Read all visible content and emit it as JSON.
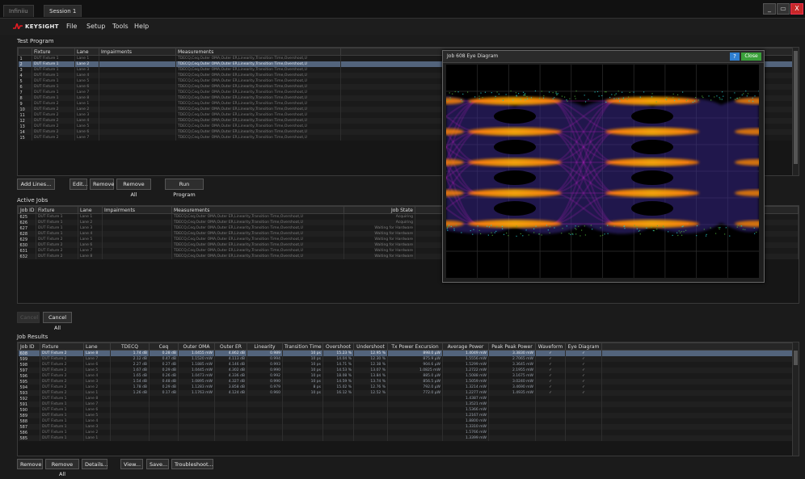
{
  "tabs": [
    {
      "label": "Infiniiu",
      "active": false
    },
    {
      "label": "Session 1",
      "active": true
    }
  ],
  "window_controls": {
    "minimize": "_",
    "restore": "▭",
    "close": "X"
  },
  "brand": {
    "name": "KEYSIGHT",
    "color": "#e31b23"
  },
  "menu": [
    "File",
    "Setup",
    "Tools",
    "Help"
  ],
  "test_program": {
    "label": "Test Program",
    "columns": [
      "",
      "Fixture",
      "Lane",
      "Impairments",
      "Measurements"
    ],
    "rows": [
      {
        "n": "1",
        "fixture": "DUT Fixture 1",
        "lane": "Lane 1",
        "imp": "",
        "meas": "TDECQ,Ceq,Outer OMA,Outer ER,Linearity,Transition Time,Overshoot,U"
      },
      {
        "n": "2",
        "fixture": "DUT Fixture 1",
        "lane": "Lane 2",
        "imp": "",
        "meas": "TDECQ,Ceq,Outer OMA,Outer ER,Linearity,Transition Time,Overshoot,U"
      },
      {
        "n": "3",
        "fixture": "DUT Fixture 1",
        "lane": "Lane 3",
        "imp": "",
        "meas": "TDECQ,Ceq,Outer OMA,Outer ER,Linearity,Transition Time,Overshoot,U"
      },
      {
        "n": "4",
        "fixture": "DUT Fixture 1",
        "lane": "Lane 4",
        "imp": "",
        "meas": "TDECQ,Ceq,Outer OMA,Outer ER,Linearity,Transition Time,Overshoot,U"
      },
      {
        "n": "5",
        "fixture": "DUT Fixture 1",
        "lane": "Lane 5",
        "imp": "",
        "meas": "TDECQ,Ceq,Outer OMA,Outer ER,Linearity,Transition Time,Overshoot,U"
      },
      {
        "n": "6",
        "fixture": "DUT Fixture 1",
        "lane": "Lane 6",
        "imp": "",
        "meas": "TDECQ,Ceq,Outer OMA,Outer ER,Linearity,Transition Time,Overshoot,U"
      },
      {
        "n": "7",
        "fixture": "DUT Fixture 1",
        "lane": "Lane 7",
        "imp": "",
        "meas": "TDECQ,Ceq,Outer OMA,Outer ER,Linearity,Transition Time,Overshoot,U"
      },
      {
        "n": "8",
        "fixture": "DUT Fixture 1",
        "lane": "Lane 8",
        "imp": "",
        "meas": "TDECQ,Ceq,Outer OMA,Outer ER,Linearity,Transition Time,Overshoot,U"
      },
      {
        "n": "9",
        "fixture": "DUT Fixture 2",
        "lane": "Lane 1",
        "imp": "",
        "meas": "TDECQ,Ceq,Outer OMA,Outer ER,Linearity,Transition Time,Overshoot,U"
      },
      {
        "n": "10",
        "fixture": "DUT Fixture 2",
        "lane": "Lane 2",
        "imp": "",
        "meas": "TDECQ,Ceq,Outer OMA,Outer ER,Linearity,Transition Time,Overshoot,U"
      },
      {
        "n": "11",
        "fixture": "DUT Fixture 2",
        "lane": "Lane 3",
        "imp": "",
        "meas": "TDECQ,Ceq,Outer OMA,Outer ER,Linearity,Transition Time,Overshoot,U"
      },
      {
        "n": "12",
        "fixture": "DUT Fixture 2",
        "lane": "Lane 4",
        "imp": "",
        "meas": "TDECQ,Ceq,Outer OMA,Outer ER,Linearity,Transition Time,Overshoot,U"
      },
      {
        "n": "13",
        "fixture": "DUT Fixture 2",
        "lane": "Lane 5",
        "imp": "",
        "meas": "TDECQ,Ceq,Outer OMA,Outer ER,Linearity,Transition Time,Overshoot,U"
      },
      {
        "n": "14",
        "fixture": "DUT Fixture 2",
        "lane": "Lane 6",
        "imp": "",
        "meas": "TDECQ,Ceq,Outer OMA,Outer ER,Linearity,Transition Time,Overshoot,U"
      },
      {
        "n": "15",
        "fixture": "DUT Fixture 2",
        "lane": "Lane 7",
        "imp": "",
        "meas": "TDECQ,Ceq,Outer OMA,Outer ER,Linearity,Transition Time,Overshoot,U"
      }
    ],
    "buttons": [
      "Add Lines...",
      "Edit...",
      "Remove",
      "Remove All",
      "Run Program"
    ]
  },
  "active_jobs": {
    "label": "Active Jobs",
    "columns": [
      "Job ID",
      "Fixture",
      "Lane",
      "Impairments",
      "Measurements",
      "Job State"
    ],
    "rows": [
      {
        "id": "625",
        "fixture": "DUT Fixture 1",
        "lane": "Lane 1",
        "imp": "",
        "meas": "TDECQ,Ceq,Outer OMA,Outer ER,Linearity,Transition Time,Overshoot,U",
        "state": "Acquiring"
      },
      {
        "id": "626",
        "fixture": "DUT Fixture 1",
        "lane": "Lane 2",
        "imp": "",
        "meas": "TDECQ,Ceq,Outer OMA,Outer ER,Linearity,Transition Time,Overshoot,U",
        "state": "Acquiring"
      },
      {
        "id": "627",
        "fixture": "DUT Fixture 1",
        "lane": "Lane 3",
        "imp": "",
        "meas": "TDECQ,Ceq,Outer OMA,Outer ER,Linearity,Transition Time,Overshoot,U",
        "state": "Waiting for Hardware"
      },
      {
        "id": "628",
        "fixture": "DUT Fixture 1",
        "lane": "Lane 4",
        "imp": "",
        "meas": "TDECQ,Ceq,Outer OMA,Outer ER,Linearity,Transition Time,Overshoot,U",
        "state": "Waiting for Hardware"
      },
      {
        "id": "629",
        "fixture": "DUT Fixture 2",
        "lane": "Lane 5",
        "imp": "",
        "meas": "TDECQ,Ceq,Outer OMA,Outer ER,Linearity,Transition Time,Overshoot,U",
        "state": "Waiting for Hardware"
      },
      {
        "id": "630",
        "fixture": "DUT Fixture 2",
        "lane": "Lane 6",
        "imp": "",
        "meas": "TDECQ,Ceq,Outer OMA,Outer ER,Linearity,Transition Time,Overshoot,U",
        "state": "Waiting for Hardware"
      },
      {
        "id": "631",
        "fixture": "DUT Fixture 2",
        "lane": "Lane 7",
        "imp": "",
        "meas": "TDECQ,Ceq,Outer OMA,Outer ER,Linearity,Transition Time,Overshoot,U",
        "state": "Waiting for Hardware"
      },
      {
        "id": "632",
        "fixture": "DUT Fixture 2",
        "lane": "Lane 8",
        "imp": "",
        "meas": "TDECQ,Ceq,Outer OMA,Outer ER,Linearity,Transition Time,Overshoot,U",
        "state": "Waiting for Hardware"
      }
    ],
    "buttons": [
      "Cancel",
      "Cancel All"
    ]
  },
  "job_results": {
    "label": "Job Results",
    "columns": [
      "Job ID",
      "Fixture",
      "Lane",
      "TDECQ",
      "Ceq",
      "Outer OMA",
      "Outer ER",
      "Linearity",
      "Transition Time",
      "Overshoot",
      "Undershoot",
      "Tx Power Excursion",
      "Average Power",
      "Peak Peak Power",
      "Waveform",
      "Eye Diagram"
    ],
    "rows": [
      {
        "id": "608",
        "fixture": "DUT Fixture 2",
        "lane": "Lane 8",
        "v": [
          "1.74 dB",
          "0.28 dB",
          "1.0455 mW",
          "4.862 dB",
          "0.989",
          "10 ps",
          "15.23 %",
          "12.95 %",
          "898.0 µW",
          "1.4049 mW",
          "3.3830 mW",
          "✓",
          "✓"
        ],
        "sel": true
      },
      {
        "id": "599",
        "fixture": "DUT Fixture 2",
        "lane": "Lane 7",
        "v": [
          "2.12 dB",
          "0.47 dB",
          "1.1520 mW",
          "4.113 dB",
          "0.994",
          "10 ps",
          "14.04 %",
          "12.30 %",
          "875.9 µW",
          "1.5556 mW",
          "2.7065 mW",
          "✓",
          "✓"
        ]
      },
      {
        "id": "598",
        "fixture": "DUT Fixture 2",
        "lane": "Lane 6",
        "v": [
          "2.27 dB",
          "0.27 dB",
          "1.1885 mW",
          "4.146 dB",
          "0.993",
          "10 ps",
          "14.71 %",
          "12.38 %",
          "904.6 µW",
          "1.5299 mW",
          "3.3645 mW",
          "✓",
          "✓"
        ]
      },
      {
        "id": "597",
        "fixture": "DUT Fixture 2",
        "lane": "Lane 5",
        "v": [
          "1.67 dB",
          "0.29 dB",
          "1.0445 mW",
          "4.302 dB",
          "0.990",
          "10 ps",
          "14.53 %",
          "13.07 %",
          "1.0825 mW",
          "1.2722 mW",
          "2.1955 mW",
          "✓",
          "✓"
        ]
      },
      {
        "id": "596",
        "fixture": "DUT Fixture 2",
        "lane": "Lane 4",
        "v": [
          "1.65 dB",
          "0.26 dB",
          "1.0473 mW",
          "4.336 dB",
          "0.992",
          "10 ps",
          "18.08 %",
          "13.84 %",
          "885.0 µW",
          "1.5088 mW",
          "3.1675 mW",
          "✓",
          "✓"
        ]
      },
      {
        "id": "595",
        "fixture": "DUT Fixture 2",
        "lane": "Lane 3",
        "v": [
          "1.54 dB",
          "0.48 dB",
          "1.0895 mW",
          "4.327 dB",
          "0.990",
          "10 ps",
          "14.59 %",
          "13.74 %",
          "856.5 µW",
          "1.5059 mW",
          "3.0240 mW",
          "✓",
          "✓"
        ]
      },
      {
        "id": "594",
        "fixture": "DUT Fixture 2",
        "lane": "Lane 2",
        "v": [
          "1.78 dB",
          "0.29 dB",
          "1.1283 mW",
          "3.858 dB",
          "0.979",
          "8 ps",
          "15.02 %",
          "12.76 %",
          "792.0 µW",
          "1.3214 mW",
          "3.4690 mW",
          "✓",
          "✓"
        ]
      },
      {
        "id": "593",
        "fixture": "DUT Fixture 2",
        "lane": "Lane 1",
        "v": [
          "1.26 dB",
          "0.17 dB",
          "1.1763 mW",
          "4.124 dB",
          "0.960",
          "10 ps",
          "16.12 %",
          "12.52 %",
          "772.0 µW",
          "1.2277 mW",
          "1.4935 mW",
          "✓",
          "✓"
        ]
      },
      {
        "id": "592",
        "fixture": "DUT Fixture 1",
        "lane": "Lane 8",
        "v": [
          "",
          "",
          "",
          "",
          "",
          "",
          "",
          "",
          "",
          "1.4387 mW",
          "",
          "",
          ""
        ]
      },
      {
        "id": "591",
        "fixture": "DUT Fixture 1",
        "lane": "Lane 7",
        "v": [
          "",
          "",
          "",
          "",
          "",
          "",
          "",
          "",
          "",
          "1.3521 mW",
          "",
          "",
          ""
        ]
      },
      {
        "id": "590",
        "fixture": "DUT Fixture 1",
        "lane": "Lane 6",
        "v": [
          "",
          "",
          "",
          "",
          "",
          "",
          "",
          "",
          "",
          "1.5366 mW",
          "",
          "",
          ""
        ]
      },
      {
        "id": "589",
        "fixture": "DUT Fixture 1",
        "lane": "Lane 5",
        "v": [
          "",
          "",
          "",
          "",
          "",
          "",
          "",
          "",
          "",
          "1.2167 mW",
          "",
          "",
          ""
        ]
      },
      {
        "id": "588",
        "fixture": "DUT Fixture 1",
        "lane": "Lane 4",
        "v": [
          "",
          "",
          "",
          "",
          "",
          "",
          "",
          "",
          "",
          "1.8800 mW",
          "",
          "",
          ""
        ]
      },
      {
        "id": "587",
        "fixture": "DUT Fixture 1",
        "lane": "Lane 3",
        "v": [
          "",
          "",
          "",
          "",
          "",
          "",
          "",
          "",
          "",
          "1.3310 mW",
          "",
          "",
          ""
        ]
      },
      {
        "id": "586",
        "fixture": "DUT Fixture 1",
        "lane": "Lane 2",
        "v": [
          "",
          "",
          "",
          "",
          "",
          "",
          "",
          "",
          "",
          "1.5766 mW",
          "",
          "",
          ""
        ]
      },
      {
        "id": "585",
        "fixture": "DUT Fixture 1",
        "lane": "Lane 1",
        "v": [
          "",
          "",
          "",
          "",
          "",
          "",
          "",
          "",
          "",
          "1.3399 mW",
          "",
          "",
          ""
        ]
      }
    ],
    "buttons": [
      "Remove",
      "Remove All",
      "Details...",
      "View...",
      "Save...",
      "Troubleshoot..."
    ]
  },
  "eye_window": {
    "title": "Job 608 Eye Diagram",
    "help": "?",
    "close": "Close"
  }
}
